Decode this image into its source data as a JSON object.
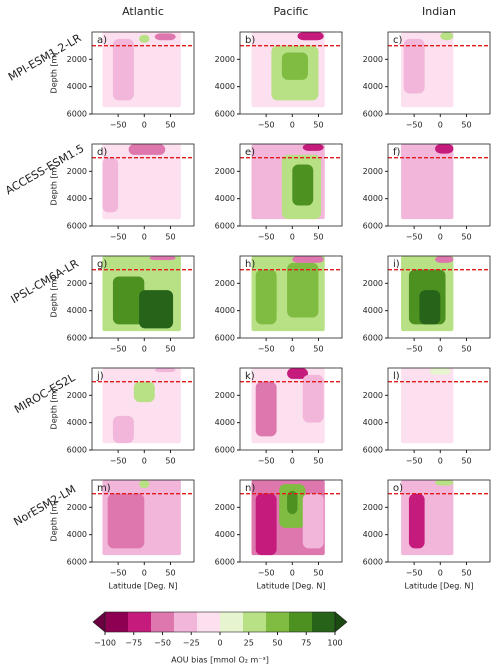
{
  "column_titles": [
    "Atlantic",
    "Pacific",
    "Indian"
  ],
  "row_titles": [
    "MPI-ESM1.2-LR",
    "ACCESS-ESM1.5",
    "IPSL-CM6A-LR",
    "MIROC-ES2L",
    "NorESM2-LM"
  ],
  "colorbar": {
    "label": "AOU bias [mmol O₂ m⁻³]",
    "levels": [
      -100,
      -80,
      -60,
      -40,
      -20,
      0,
      20,
      40,
      60,
      80,
      100
    ],
    "colors": [
      "#8e0152",
      "#c51b7d",
      "#de77ae",
      "#f1b6da",
      "#fde0ef",
      "#e6f5d0",
      "#b8e186",
      "#7fbc41",
      "#4d9221",
      "#276419"
    ],
    "extend_colors": [
      "#6a0040",
      "#1a4a12"
    ],
    "ticks": [
      {
        "value": -100,
        "label": "−100"
      },
      {
        "value": -75,
        "label": "−75"
      },
      {
        "value": -50,
        "label": "−50"
      },
      {
        "value": -25,
        "label": "−25"
      },
      0,
      25,
      50,
      75,
      100
    ]
  },
  "chart_data": [
    {
      "type": "contour",
      "label": "a)",
      "ylabel": "Depth [m]",
      "reference_depth": 1000,
      "regions": [
        {
          "lat": [
            -80,
            70
          ],
          "depth": [
            0,
            5500
          ],
          "value": -15
        },
        {
          "lat": [
            -60,
            -20
          ],
          "depth": [
            500,
            5000
          ],
          "value": -30
        },
        {
          "lat": [
            -10,
            10
          ],
          "depth": [
            200,
            800
          ],
          "value": 30
        },
        {
          "lat": [
            20,
            60
          ],
          "depth": [
            100,
            600
          ],
          "value": -50
        }
      ]
    },
    {
      "type": "contour",
      "label": "b)",
      "reference_depth": 1000,
      "regions": [
        {
          "lat": [
            -78,
            62
          ],
          "depth": [
            0,
            5500
          ],
          "value": -20
        },
        {
          "lat": [
            -40,
            50
          ],
          "depth": [
            1000,
            5000
          ],
          "value": 30
        },
        {
          "lat": [
            -20,
            30
          ],
          "depth": [
            1500,
            3500
          ],
          "value": 55
        },
        {
          "lat": [
            10,
            60
          ],
          "depth": [
            0,
            600
          ],
          "value": -70
        }
      ]
    },
    {
      "type": "contour",
      "label": "c)",
      "reference_depth": 1000,
      "regions": [
        {
          "lat": [
            -75,
            25
          ],
          "depth": [
            0,
            5500
          ],
          "value": -15
        },
        {
          "lat": [
            -70,
            -30
          ],
          "depth": [
            500,
            4500
          ],
          "value": -40
        },
        {
          "lat": [
            0,
            25
          ],
          "depth": [
            0,
            600
          ],
          "value": 20
        }
      ]
    },
    {
      "type": "contour",
      "label": "d)",
      "ylabel": "Depth [m]",
      "reference_depth": 1000,
      "regions": [
        {
          "lat": [
            -80,
            70
          ],
          "depth": [
            0,
            5500
          ],
          "value": -20
        },
        {
          "lat": [
            -30,
            40
          ],
          "depth": [
            0,
            800
          ],
          "value": -60
        },
        {
          "lat": [
            -80,
            -50
          ],
          "depth": [
            1000,
            5000
          ],
          "value": -40
        },
        {
          "lat": [
            20,
            60
          ],
          "depth": [
            1000,
            4000
          ],
          "value": -10
        }
      ]
    },
    {
      "type": "contour",
      "label": "e)",
      "reference_depth": 1000,
      "regions": [
        {
          "lat": [
            -78,
            62
          ],
          "depth": [
            0,
            5500
          ],
          "value": -25
        },
        {
          "lat": [
            -20,
            55
          ],
          "depth": [
            800,
            5500
          ],
          "value": 35
        },
        {
          "lat": [
            0,
            40
          ],
          "depth": [
            1500,
            4500
          ],
          "value": 60
        },
        {
          "lat": [
            20,
            60
          ],
          "depth": [
            0,
            500
          ],
          "value": -80
        },
        {
          "lat": [
            -75,
            -40
          ],
          "depth": [
            500,
            5000
          ],
          "value": -40
        }
      ]
    },
    {
      "type": "contour",
      "label": "f)",
      "reference_depth": 1000,
      "regions": [
        {
          "lat": [
            -75,
            25
          ],
          "depth": [
            0,
            5500
          ],
          "value": -25
        },
        {
          "lat": [
            -10,
            25
          ],
          "depth": [
            0,
            700
          ],
          "value": -70
        },
        {
          "lat": [
            -70,
            -30
          ],
          "depth": [
            500,
            5000
          ],
          "value": -40
        }
      ]
    },
    {
      "type": "contour",
      "label": "g)",
      "ylabel": "Depth [m]",
      "reference_depth": 1000,
      "regions": [
        {
          "lat": [
            -80,
            70
          ],
          "depth": [
            0,
            5500
          ],
          "value": 30
        },
        {
          "lat": [
            -60,
            0
          ],
          "depth": [
            1500,
            5000
          ],
          "value": 60
        },
        {
          "lat": [
            -10,
            55
          ],
          "depth": [
            2500,
            5300
          ],
          "value": 90
        },
        {
          "lat": [
            10,
            60
          ],
          "depth": [
            0,
            300
          ],
          "value": -50
        }
      ]
    },
    {
      "type": "contour",
      "label": "h)",
      "reference_depth": 1000,
      "regions": [
        {
          "lat": [
            -78,
            62
          ],
          "depth": [
            0,
            5500
          ],
          "value": 30
        },
        {
          "lat": [
            -10,
            50
          ],
          "depth": [
            500,
            4500
          ],
          "value": 55
        },
        {
          "lat": [
            -70,
            -30
          ],
          "depth": [
            1000,
            5000
          ],
          "value": 45
        },
        {
          "lat": [
            0,
            60
          ],
          "depth": [
            0,
            500
          ],
          "value": -60
        }
      ]
    },
    {
      "type": "contour",
      "label": "i)",
      "reference_depth": 1000,
      "regions": [
        {
          "lat": [
            -75,
            25
          ],
          "depth": [
            0,
            5500
          ],
          "value": 30
        },
        {
          "lat": [
            -60,
            10
          ],
          "depth": [
            1000,
            5000
          ],
          "value": 60
        },
        {
          "lat": [
            -40,
            0
          ],
          "depth": [
            2500,
            5000
          ],
          "value": 90
        },
        {
          "lat": [
            -10,
            25
          ],
          "depth": [
            0,
            500
          ],
          "value": -60
        }
      ]
    },
    {
      "type": "contour",
      "label": "j)",
      "ylabel": "Depth [m]",
      "reference_depth": 1000,
      "regions": [
        {
          "lat": [
            -80,
            70
          ],
          "depth": [
            0,
            5500
          ],
          "value": -10
        },
        {
          "lat": [
            -20,
            20
          ],
          "depth": [
            1000,
            2500
          ],
          "value": 30
        },
        {
          "lat": [
            -60,
            -20
          ],
          "depth": [
            3500,
            5500
          ],
          "value": -40
        },
        {
          "lat": [
            20,
            60
          ],
          "depth": [
            0,
            300
          ],
          "value": -30
        }
      ]
    },
    {
      "type": "contour",
      "label": "k)",
      "reference_depth": 1000,
      "regions": [
        {
          "lat": [
            -78,
            62
          ],
          "depth": [
            0,
            5500
          ],
          "value": -15
        },
        {
          "lat": [
            -10,
            30
          ],
          "depth": [
            0,
            800
          ],
          "value": -80
        },
        {
          "lat": [
            -70,
            -30
          ],
          "depth": [
            1000,
            5000
          ],
          "value": -45
        },
        {
          "lat": [
            20,
            60
          ],
          "depth": [
            500,
            4000
          ],
          "value": -30
        }
      ]
    },
    {
      "type": "contour",
      "label": "l)",
      "reference_depth": 1000,
      "regions": [
        {
          "lat": [
            -75,
            25
          ],
          "depth": [
            0,
            5500
          ],
          "value": -10
        },
        {
          "lat": [
            -20,
            20
          ],
          "depth": [
            0,
            500
          ],
          "value": 10
        }
      ]
    },
    {
      "type": "contour",
      "label": "m)",
      "ylabel": "Depth [m]",
      "xlabel": "Latitude [Deg. N]",
      "reference_depth": 1000,
      "regions": [
        {
          "lat": [
            -80,
            70
          ],
          "depth": [
            0,
            5500
          ],
          "value": -40
        },
        {
          "lat": [
            -70,
            0
          ],
          "depth": [
            1000,
            5000
          ],
          "value": -60
        },
        {
          "lat": [
            10,
            60
          ],
          "depth": [
            1000,
            3000
          ],
          "value": -30
        },
        {
          "lat": [
            -10,
            10
          ],
          "depth": [
            0,
            600
          ],
          "value": 20
        }
      ]
    },
    {
      "type": "contour",
      "label": "n)",
      "xlabel": "Latitude [Deg. N]",
      "reference_depth": 1000,
      "regions": [
        {
          "lat": [
            -78,
            62
          ],
          "depth": [
            0,
            5500
          ],
          "value": -50
        },
        {
          "lat": [
            -70,
            -30
          ],
          "depth": [
            1000,
            5500
          ],
          "value": -70
        },
        {
          "lat": [
            -25,
            25
          ],
          "depth": [
            300,
            3500
          ],
          "value": 40
        },
        {
          "lat": [
            -10,
            10
          ],
          "depth": [
            800,
            2500
          ],
          "value": 75
        },
        {
          "lat": [
            20,
            60
          ],
          "depth": [
            1000,
            5000
          ],
          "value": -25
        }
      ]
    },
    {
      "type": "contour",
      "label": "o)",
      "xlabel": "Latitude [Deg. N]",
      "reference_depth": 1000,
      "regions": [
        {
          "lat": [
            -75,
            25
          ],
          "depth": [
            0,
            5500
          ],
          "value": -40
        },
        {
          "lat": [
            -60,
            -30
          ],
          "depth": [
            1000,
            5000
          ],
          "value": -65
        },
        {
          "lat": [
            -10,
            25
          ],
          "depth": [
            0,
            400
          ],
          "value": 20
        }
      ]
    }
  ],
  "axes": {
    "xlim": [
      -100,
      95
    ],
    "xticks": [
      {
        "value": -50,
        "label": "−50"
      },
      0,
      50
    ],
    "ylim": [
      0,
      6000
    ],
    "yticks": [
      2000,
      4000,
      6000
    ],
    "y_inverted": true,
    "reference_color": "#e41a1c"
  }
}
